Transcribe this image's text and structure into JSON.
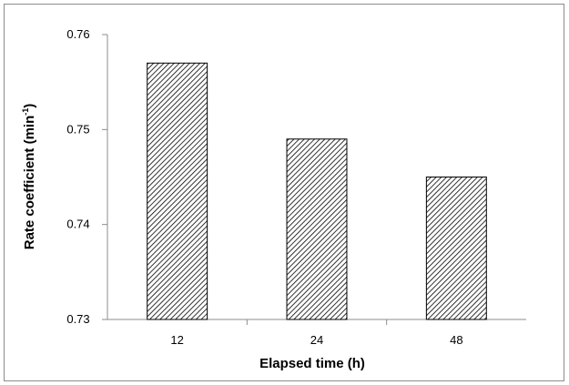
{
  "chart_data": {
    "type": "bar",
    "title": "",
    "xlabel": "Elapsed time (h)",
    "ylabel_main": "Rate coefficient (min",
    "ylabel_sup": "-1",
    "ylabel_end": ")",
    "categories": [
      "12",
      "24",
      "48"
    ],
    "values": [
      0.757,
      0.749,
      0.745
    ],
    "ylim": [
      0.73,
      0.76
    ],
    "yticks": [
      "0.73",
      "0.74",
      "0.75",
      "0.76"
    ],
    "grid": false,
    "legend": "none",
    "bar_fill": "diagonal-hatch",
    "colors": {
      "bar_stroke": "#000000",
      "hatch": "#000000",
      "axis": "#8c8c8c"
    }
  }
}
